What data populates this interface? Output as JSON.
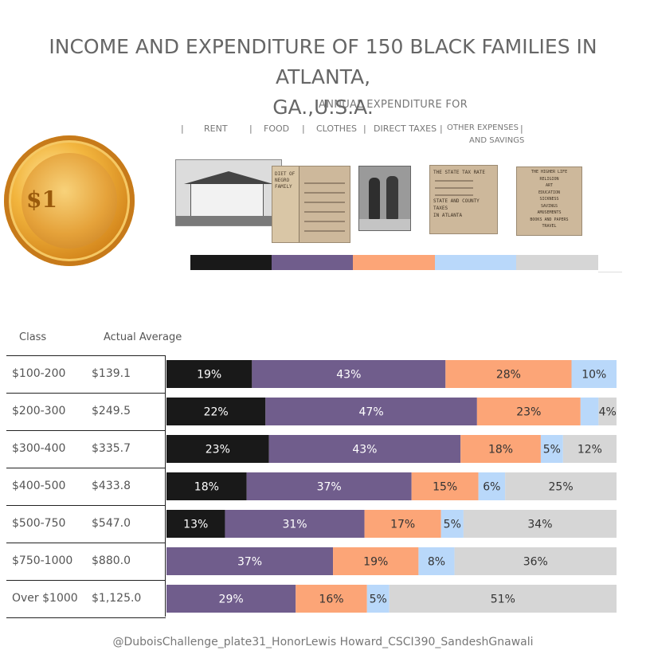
{
  "title_line1": "INCOME AND EXPENDITURE OF 150 BLACK FAMILIES IN ATLANTA,",
  "title_line2": "GA.,U.S.A.",
  "subtitle": "ANNUAL EXPENDITURE FOR",
  "categories": [
    "RENT",
    "FOOD",
    "CLOTHES",
    "DIRECT TAXES",
    "OTHER EXPENSES",
    "AND SAVINGS"
  ],
  "colors": {
    "rent": "#191919",
    "food": "#705d8c",
    "clothes": "#fca577",
    "direct_taxes": "#b9d8fa",
    "other": "#d6d6d6"
  },
  "photos": {
    "food_doc": [
      "DIET OF",
      "NEGRO",
      "FAMILY"
    ],
    "tax_doc": [
      "THE STATE TAX RATE",
      "STATE AND COUNTY TAXES",
      "IN ATLANTA"
    ],
    "higher_life": [
      "THE HIGHER LIFE",
      "RELIGION",
      "ART",
      "EDUCATION",
      "SICKNESS",
      "SAVINGS",
      "AMUSEMENTS",
      "BOOKS AND PAPERS",
      "TRAVEL"
    ],
    "coin_text": "$1"
  },
  "table_headers": {
    "class": "Class",
    "average": "Actual Average"
  },
  "footer": "@DuboisChallenge_plate31_HonorLewis Howard_CSCI390_SandeshGnawali",
  "chart_data": {
    "type": "bar",
    "orientation": "horizontal-stacked-100",
    "series_order": [
      "Rent",
      "Food",
      "Clothes",
      "Direct Taxes",
      "Other Expenses and Savings"
    ],
    "rows": [
      {
        "class": "$100-200",
        "average": "$139.1",
        "values": [
          19,
          43,
          28,
          10,
          0
        ],
        "labels": [
          "19%",
          "43%",
          "28%",
          "10%",
          ""
        ]
      },
      {
        "class": "$200-300",
        "average": "$249.5",
        "values": [
          22,
          47,
          23,
          4,
          4
        ],
        "labels": [
          "22%",
          "47%",
          "23%",
          "",
          "4%"
        ]
      },
      {
        "class": "$300-400",
        "average": "$335.7",
        "values": [
          23,
          43,
          18,
          5,
          12
        ],
        "labels": [
          "23%",
          "43%",
          "18%",
          "5%",
          "12%"
        ]
      },
      {
        "class": "$400-500",
        "average": "$433.8",
        "values": [
          18,
          37,
          15,
          6,
          25
        ],
        "labels": [
          "18%",
          "37%",
          "15%",
          "6%",
          "25%"
        ]
      },
      {
        "class": "$500-750",
        "average": "$547.0",
        "values": [
          13,
          31,
          17,
          5,
          34
        ],
        "labels": [
          "13%",
          "31%",
          "17%",
          "5%",
          "34%"
        ]
      },
      {
        "class": "$750-1000",
        "average": "$880.0",
        "values": [
          0,
          37,
          19,
          8,
          36
        ],
        "labels": [
          "",
          "37%",
          "19%",
          "8%",
          "36%"
        ]
      },
      {
        "class": "Over $1000",
        "average": "$1,125.0",
        "values": [
          0,
          29,
          16,
          5,
          51
        ],
        "labels": [
          "",
          "29%",
          "16%",
          "5%",
          "51%"
        ]
      }
    ]
  }
}
